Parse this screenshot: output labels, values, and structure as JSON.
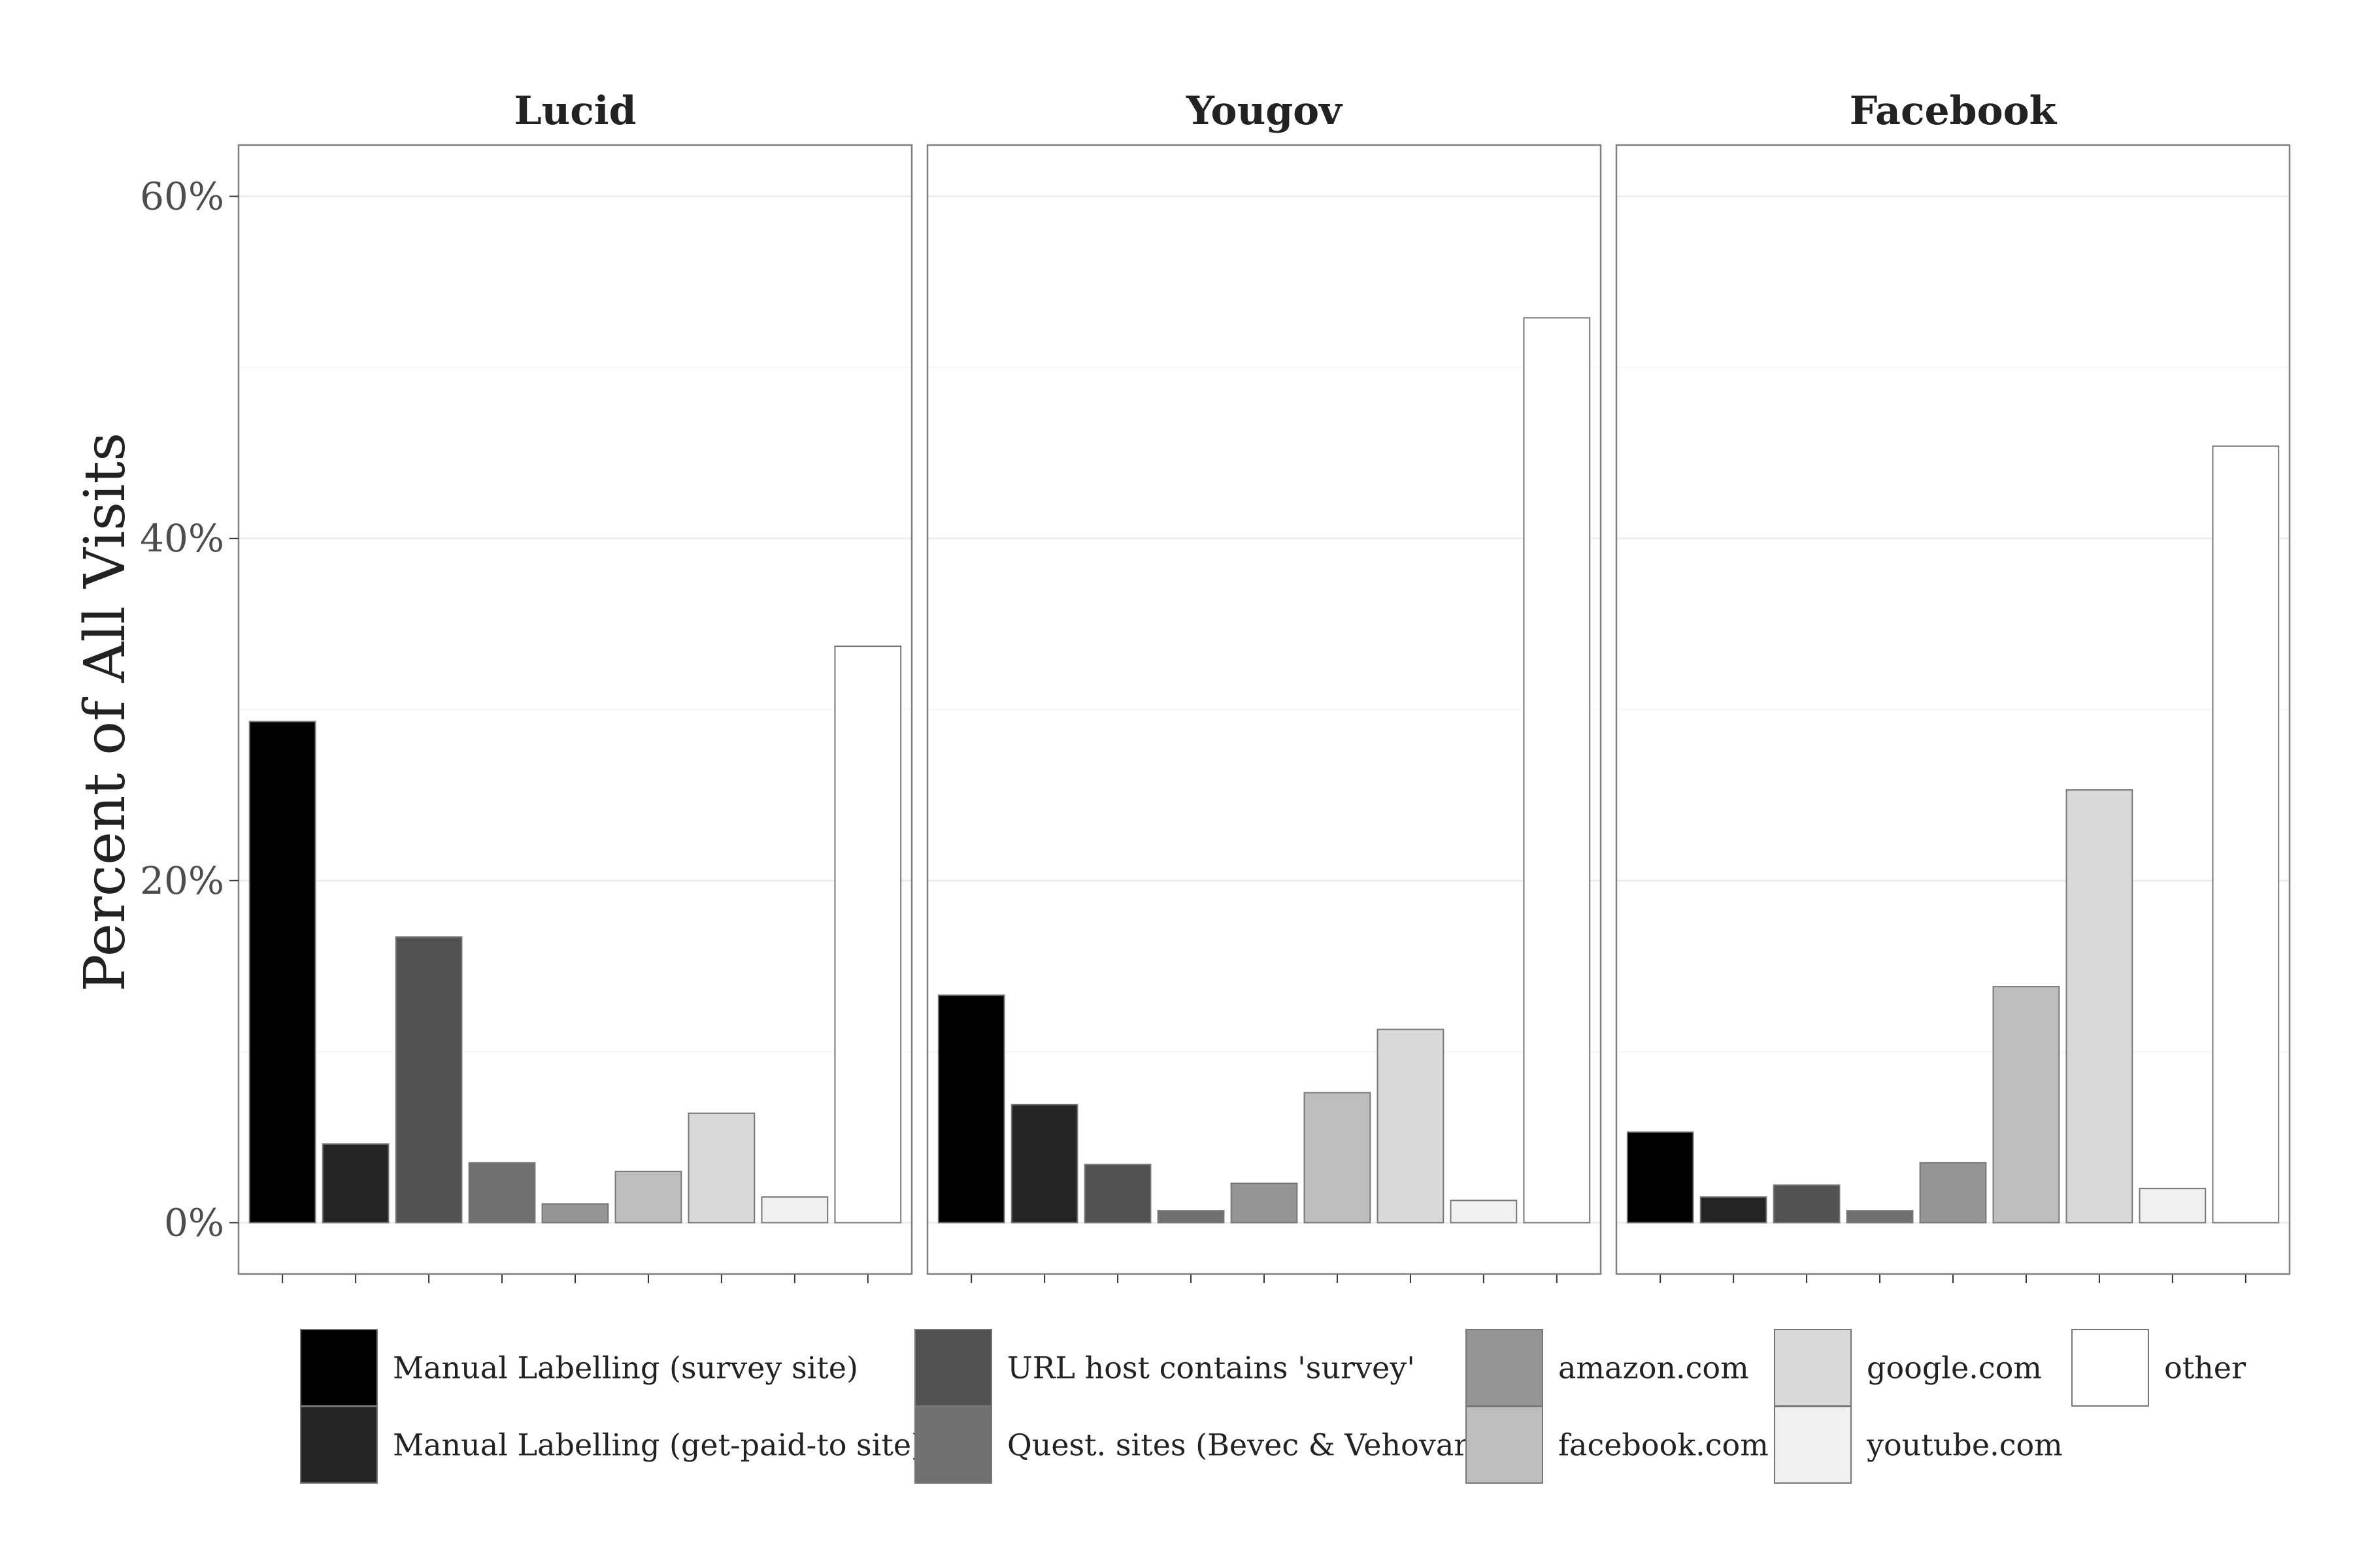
{
  "chart_data": {
    "type": "bar",
    "ylabel": "Percent of All Visits",
    "ylim": [
      -3,
      63
    ],
    "yticks": [
      {
        "value": 0,
        "label": "0%"
      },
      {
        "value": 20,
        "label": "20%"
      },
      {
        "value": 40,
        "label": "40%"
      },
      {
        "value": 60,
        "label": "60%"
      }
    ],
    "grid": true,
    "legend_position": "bottom",
    "categories": [
      {
        "label": "Manual Labelling (survey site)",
        "color": "#000000"
      },
      {
        "label": "Manual Labelling (get-paid-to site)",
        "color": "#242424"
      },
      {
        "label": "URL host contains 'survey'",
        "color": "#525252"
      },
      {
        "label": "Quest. sites (Bevec & Vehovar)",
        "color": "#707070"
      },
      {
        "label": "amazon.com",
        "color": "#959595"
      },
      {
        "label": "facebook.com",
        "color": "#bdbdbd"
      },
      {
        "label": "google.com",
        "color": "#d9d9d9"
      },
      {
        "label": "youtube.com",
        "color": "#f0f0f0"
      },
      {
        "label": "other",
        "color": "#ffffff"
      }
    ],
    "panels": [
      {
        "name": "Lucid",
        "values": [
          29.3,
          4.6,
          16.7,
          3.5,
          1.1,
          3.0,
          6.4,
          1.5,
          33.7
        ]
      },
      {
        "name": "Yougov",
        "values": [
          13.3,
          6.9,
          3.4,
          0.7,
          2.3,
          7.6,
          11.3,
          1.3,
          52.9
        ]
      },
      {
        "name": "Facebook",
        "values": [
          5.3,
          1.5,
          2.2,
          0.7,
          3.5,
          13.8,
          25.3,
          2.0,
          45.4
        ]
      }
    ]
  }
}
